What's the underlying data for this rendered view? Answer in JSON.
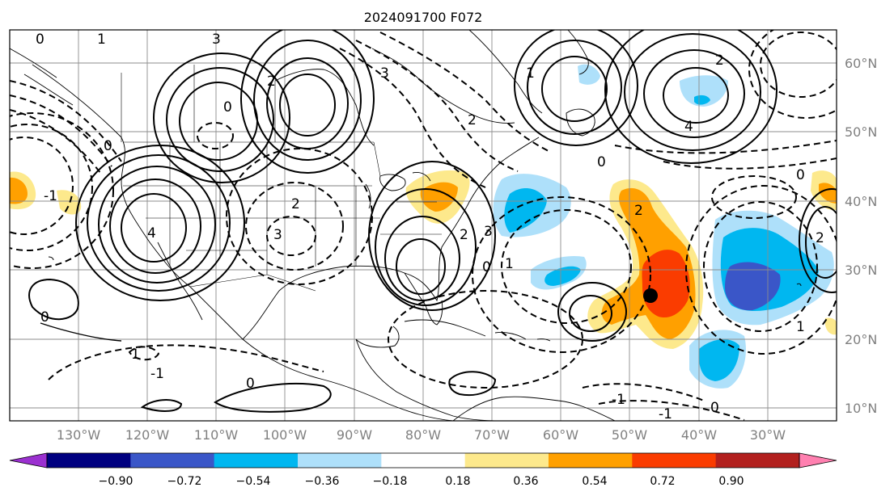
{
  "map": {
    "title": "2024091700 F072",
    "lon_labels": [
      "130°W",
      "120°W",
      "110°W",
      "100°W",
      "90°W",
      "80°W",
      "70°W",
      "60°W",
      "50°W",
      "40°W",
      "30°W"
    ],
    "lat_labels": [
      "60°N",
      "50°N",
      "40°N",
      "30°N",
      "20°N",
      "10°N"
    ],
    "contour_labels": [
      "0",
      "1",
      "3",
      "0",
      "2",
      "0",
      "3",
      "2",
      "1",
      "2",
      "4",
      "0",
      "2",
      "3",
      "4",
      "-1",
      "0",
      "1",
      "2",
      "3",
      "2",
      "0",
      "1",
      "0",
      "2",
      "0",
      "-1",
      "0",
      "-1",
      "1",
      "-1"
    ],
    "colorbar": {
      "ticks": [
        "−0.90",
        "−0.72",
        "−0.54",
        "−0.36",
        "−0.18",
        "0.18",
        "0.36",
        "0.54",
        "0.72",
        "0.90"
      ],
      "colors": [
        "#9b30d0",
        "#000080",
        "#3a56c8",
        "#00b7f0",
        "#aee0fa",
        "#ffffff",
        "#fde98c",
        "#ffa000",
        "#fa3c00",
        "#b2201e",
        "#ff80b0"
      ]
    }
  }
}
